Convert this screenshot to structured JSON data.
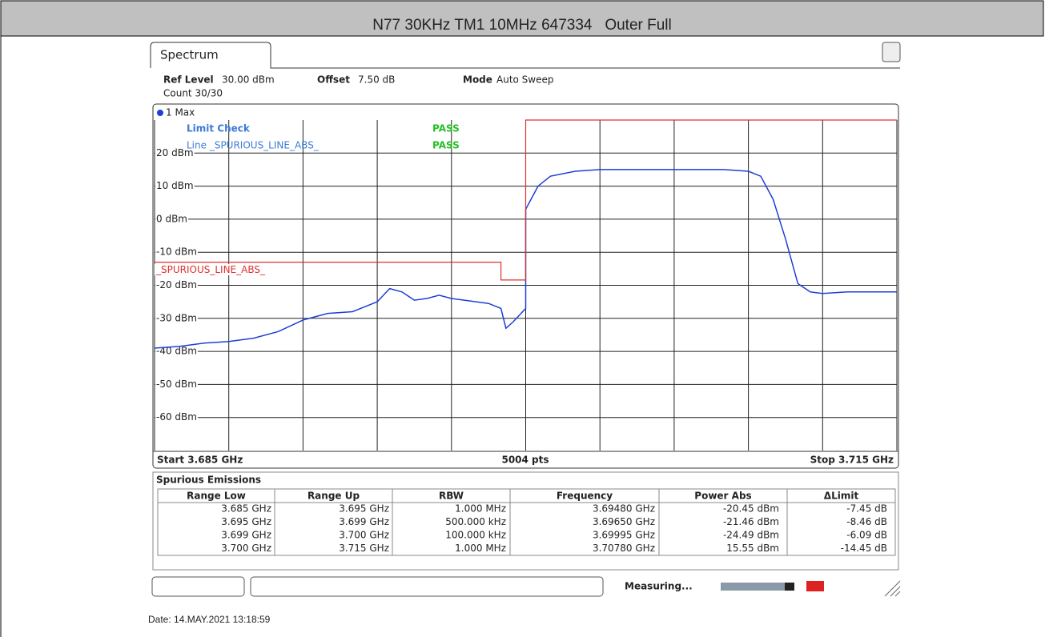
{
  "header": {
    "title": "N77 30KHz TM1 10MHz 647334   Outer Full"
  },
  "screen": {
    "tab": "Spectrum",
    "ref_level_label": "Ref Level",
    "ref_level": "30.00 dBm",
    "offset_label": "Offset",
    "offset": "7.50 dB",
    "mode_label": "Mode",
    "mode": "Auto Sweep",
    "count": "Count 30/30",
    "limit_check": "Limit Check",
    "limit_check_result": "PASS",
    "line_check": "Line _SPURIOUS_LINE_ABS_",
    "line_check_result": "PASS",
    "start": "Start 3.685 GHz",
    "points": "5004 pts",
    "stop": "Stop 3.715 GHz",
    "status": "Measuring..."
  },
  "chart_data": {
    "type": "line",
    "grid": true,
    "xlim": [
      3.685,
      3.715
    ],
    "xticks": [
      3.685,
      3.688,
      3.691,
      3.694,
      3.697,
      3.7,
      3.703,
      3.706,
      3.709,
      3.712,
      3.715
    ],
    "ylim": [
      -70,
      30
    ],
    "yticks": [
      {
        "value": 20,
        "label": "20 dBm"
      },
      {
        "value": 10,
        "label": "10 dBm"
      },
      {
        "value": 0,
        "label": "0 dBm"
      },
      {
        "value": -10,
        "label": "-10 dBm"
      },
      {
        "value": -20,
        "label": "-20 dBm"
      },
      {
        "value": -30,
        "label": "-30 dBm"
      },
      {
        "value": -40,
        "label": "-40 dBm"
      },
      {
        "value": -50,
        "label": "-50 dBm"
      },
      {
        "value": -60,
        "label": "-60 dBm"
      }
    ],
    "series": [
      {
        "name": "1 Max",
        "color": "#1f3fd6",
        "x": [
          3.685,
          3.686,
          3.687,
          3.688,
          3.689,
          3.69,
          3.691,
          3.692,
          3.693,
          3.694,
          3.6945,
          3.695,
          3.6955,
          3.696,
          3.6965,
          3.697,
          3.698,
          3.6985,
          3.699,
          3.6992,
          3.6995,
          3.7,
          3.7,
          3.7005,
          3.701,
          3.702,
          3.703,
          3.704,
          3.705,
          3.706,
          3.707,
          3.708,
          3.709,
          3.7095,
          3.71,
          3.7105,
          3.711,
          3.7115,
          3.712,
          3.713,
          3.714,
          3.715
        ],
        "values": [
          -39,
          -38.5,
          -37.5,
          -37,
          -36,
          -34,
          -30.5,
          -28.5,
          -28,
          -25,
          -21,
          -22,
          -24.5,
          -24,
          -23,
          -24,
          -25,
          -25.5,
          -27,
          -33,
          -31,
          -27,
          3,
          10,
          13,
          14.5,
          15,
          15,
          15,
          15,
          15,
          15,
          14.5,
          13,
          6,
          -6,
          -19.5,
          -22,
          -22.5,
          -22,
          -22,
          -22
        ]
      },
      {
        "name": "_SPURIOUS_LINE_ABS_",
        "color": "#e03030",
        "x": [
          3.685,
          3.699,
          3.699,
          3.7,
          3.7,
          3.715
        ],
        "values": [
          -13,
          -13,
          -18.4,
          -18.4,
          30,
          30
        ]
      }
    ]
  },
  "table": {
    "title": "Spurious Emissions",
    "columns": [
      "Range Low",
      "Range Up",
      "RBW",
      "Frequency",
      "Power Abs",
      "ΔLimit"
    ],
    "rows": [
      [
        "3.685 GHz",
        "3.695 GHz",
        "1.000 MHz",
        "3.69480 GHz",
        "-20.45 dBm",
        "-7.45 dB"
      ],
      [
        "3.695 GHz",
        "3.699 GHz",
        "500.000 kHz",
        "3.69650 GHz",
        "-21.46 dBm",
        "-8.46 dB"
      ],
      [
        "3.699 GHz",
        "3.700 GHz",
        "100.000 kHz",
        "3.69995 GHz",
        "-24.49 dBm",
        "-6.09 dB"
      ],
      [
        "3.700 GHz",
        "3.715 GHz",
        "1.000 MHz",
        "3.70780 GHz",
        "15.55 dBm",
        "-14.45 dB"
      ]
    ]
  },
  "footer": {
    "date": "Date: 14.MAY.2021 13:18:59"
  }
}
